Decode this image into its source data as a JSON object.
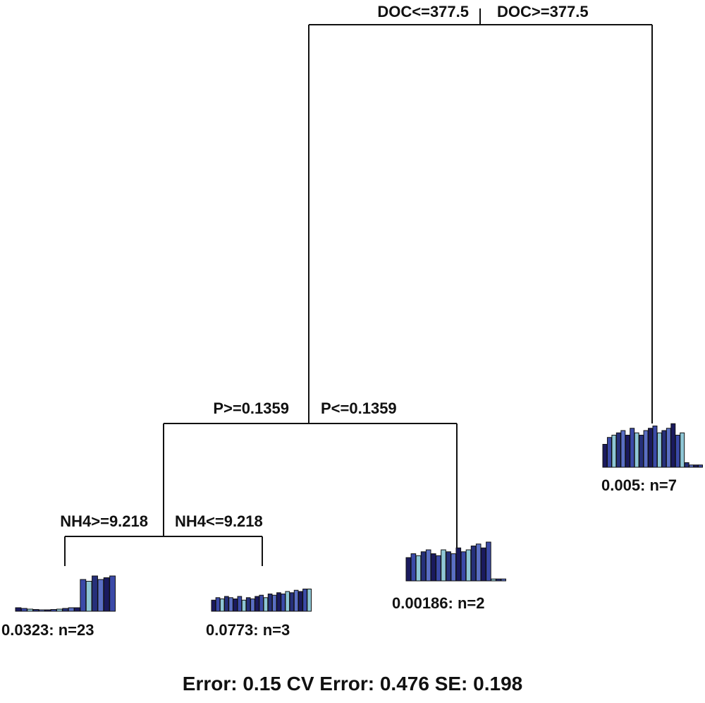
{
  "splits": {
    "root": {
      "left": "DOC<=377.5",
      "right": "DOC>=377.5"
    },
    "p": {
      "left": "P>=0.1359",
      "right": "P<=0.1359"
    },
    "nh4": {
      "left": "NH4>=9.218",
      "right": "NH4<=9.218"
    }
  },
  "leaves": [
    {
      "id": "leaf-1",
      "label": "0.0323: n=23",
      "bars": [
        0.1,
        0.08,
        0.06,
        0.05,
        0.04,
        0.04,
        0.05,
        0.06,
        0.08,
        0.1,
        0.1,
        0.9,
        0.85,
        1.0,
        0.9,
        0.95,
        1.0
      ]
    },
    {
      "id": "leaf-2",
      "label": "0.0773: n=3",
      "bars": [
        0.45,
        0.55,
        0.5,
        0.6,
        0.55,
        0.5,
        0.6,
        0.45,
        0.55,
        0.5,
        0.6,
        0.65,
        0.55,
        0.7,
        0.65,
        0.75,
        0.7,
        0.8,
        0.75,
        0.85,
        0.8,
        0.9,
        0.9
      ]
    },
    {
      "id": "leaf-3",
      "label": "0.00186: n=2",
      "bars": [
        0.6,
        0.7,
        0.65,
        0.75,
        0.8,
        0.7,
        0.65,
        0.8,
        0.75,
        0.7,
        0.85,
        0.75,
        0.8,
        0.9,
        0.95,
        0.85,
        1.0,
        0.05,
        0.05,
        0.05
      ]
    },
    {
      "id": "leaf-4",
      "label": "0.005: n=7",
      "bars": [
        0.5,
        0.65,
        0.7,
        0.75,
        0.8,
        0.7,
        0.85,
        0.75,
        0.7,
        0.8,
        0.85,
        0.9,
        0.75,
        0.8,
        0.85,
        0.95,
        0.7,
        0.75,
        0.1,
        0.05,
        0.05,
        0.05
      ]
    }
  ],
  "colors": {
    "bar_palette": [
      "#1a1a5e",
      "#3b4aa8",
      "#8fc7d6",
      "#26307a",
      "#5a6fc4"
    ],
    "line": "#111111"
  },
  "footer": "Error: 0.15  CV Error: 0.476  SE: 0.198"
}
